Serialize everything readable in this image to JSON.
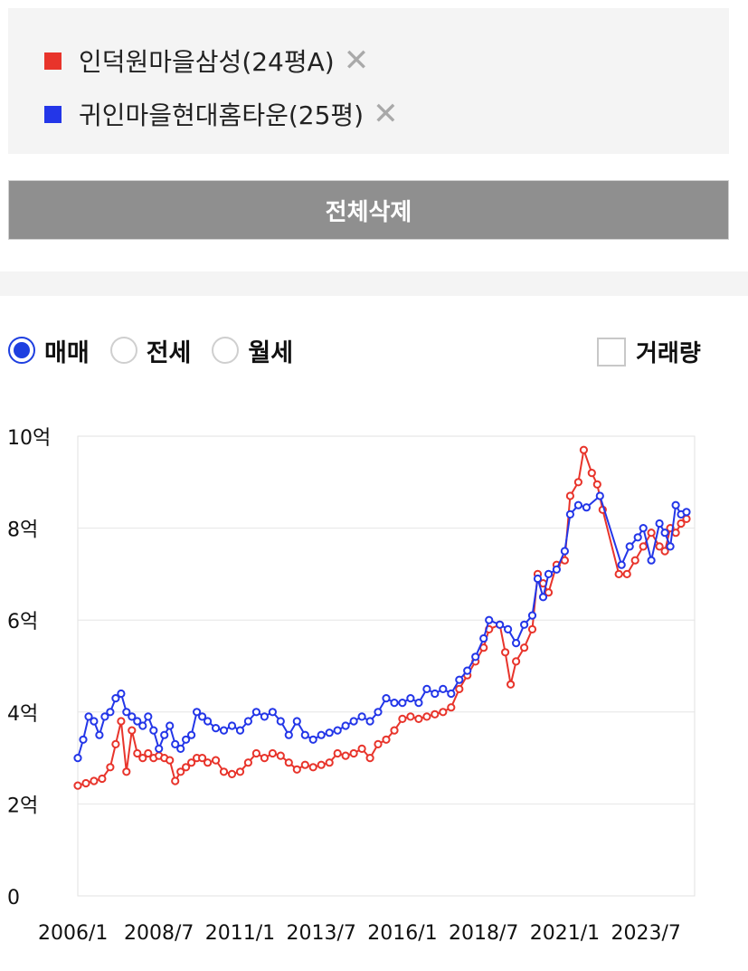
{
  "legend": {
    "items": [
      {
        "label": "인덕원마을삼성(24평A)",
        "color": "#e8342b",
        "remove_icon": "close-icon",
        "remove_glyph": "✕"
      },
      {
        "label": "귀인마을현대홈타운(25평)",
        "color": "#2336e8",
        "remove_icon": "close-icon",
        "remove_glyph": "✕"
      }
    ]
  },
  "actions": {
    "delete_all_label": "전체삭제"
  },
  "trade_type": {
    "options": [
      {
        "label": "매매",
        "selected": true
      },
      {
        "label": "전세",
        "selected": false
      },
      {
        "label": "월세",
        "selected": false
      }
    ]
  },
  "volume_toggle": {
    "label": "거래량",
    "checked": false
  },
  "chart_data": {
    "type": "line",
    "title": "",
    "xlabel": "",
    "ylabel": "",
    "x_ticks": [
      "2006/1",
      "2008/7",
      "2011/1",
      "2013/7",
      "2016/1",
      "2018/7",
      "2021/1",
      "2023/7"
    ],
    "y_ticks": [
      {
        "value": 0,
        "label": "0"
      },
      {
        "value": 2,
        "label": "2억"
      },
      {
        "value": 4,
        "label": "4억"
      },
      {
        "value": 6,
        "label": "6억"
      },
      {
        "value": 8,
        "label": "8억"
      },
      {
        "value": 10,
        "label": "10억"
      }
    ],
    "xlim": [
      "2006-01",
      "2025-01"
    ],
    "ylim": [
      0,
      10
    ],
    "y_unit": "억",
    "grid": "horizontal",
    "series": [
      {
        "name": "인덕원마을삼성(24평A)",
        "color": "#e8342b",
        "points": [
          [
            "2006-01",
            2.4
          ],
          [
            "2006-04",
            2.45
          ],
          [
            "2006-07",
            2.5
          ],
          [
            "2006-10",
            2.55
          ],
          [
            "2007-01",
            2.8
          ],
          [
            "2007-03",
            3.3
          ],
          [
            "2007-05",
            3.8
          ],
          [
            "2007-07",
            2.7
          ],
          [
            "2007-09",
            3.6
          ],
          [
            "2007-11",
            3.1
          ],
          [
            "2008-01",
            3.0
          ],
          [
            "2008-03",
            3.1
          ],
          [
            "2008-05",
            3.0
          ],
          [
            "2008-07",
            3.05
          ],
          [
            "2008-09",
            3.0
          ],
          [
            "2008-11",
            2.95
          ],
          [
            "2009-01",
            2.5
          ],
          [
            "2009-03",
            2.7
          ],
          [
            "2009-05",
            2.8
          ],
          [
            "2009-07",
            2.9
          ],
          [
            "2009-09",
            3.0
          ],
          [
            "2009-11",
            3.0
          ],
          [
            "2010-01",
            2.9
          ],
          [
            "2010-04",
            2.95
          ],
          [
            "2010-07",
            2.7
          ],
          [
            "2010-10",
            2.65
          ],
          [
            "2011-01",
            2.7
          ],
          [
            "2011-04",
            2.9
          ],
          [
            "2011-07",
            3.1
          ],
          [
            "2011-10",
            3.0
          ],
          [
            "2012-01",
            3.1
          ],
          [
            "2012-04",
            3.05
          ],
          [
            "2012-07",
            2.9
          ],
          [
            "2012-10",
            2.75
          ],
          [
            "2013-01",
            2.85
          ],
          [
            "2013-04",
            2.8
          ],
          [
            "2013-07",
            2.85
          ],
          [
            "2013-10",
            2.9
          ],
          [
            "2014-01",
            3.1
          ],
          [
            "2014-04",
            3.05
          ],
          [
            "2014-07",
            3.1
          ],
          [
            "2014-10",
            3.2
          ],
          [
            "2015-01",
            3.0
          ],
          [
            "2015-04",
            3.3
          ],
          [
            "2015-07",
            3.4
          ],
          [
            "2015-10",
            3.6
          ],
          [
            "2016-01",
            3.85
          ],
          [
            "2016-04",
            3.9
          ],
          [
            "2016-07",
            3.85
          ],
          [
            "2016-10",
            3.9
          ],
          [
            "2017-01",
            3.95
          ],
          [
            "2017-04",
            4.0
          ],
          [
            "2017-07",
            4.1
          ],
          [
            "2017-10",
            4.5
          ],
          [
            "2018-01",
            4.8
          ],
          [
            "2018-04",
            5.1
          ],
          [
            "2018-07",
            5.4
          ],
          [
            "2018-09",
            5.8
          ],
          [
            "2019-01",
            5.9
          ],
          [
            "2019-03",
            5.3
          ],
          [
            "2019-05",
            4.6
          ],
          [
            "2019-07",
            5.1
          ],
          [
            "2019-10",
            5.4
          ],
          [
            "2020-01",
            5.8
          ],
          [
            "2020-03",
            7.0
          ],
          [
            "2020-05",
            6.8
          ],
          [
            "2020-07",
            6.6
          ],
          [
            "2020-10",
            7.2
          ],
          [
            "2021-01",
            7.3
          ],
          [
            "2021-03",
            8.7
          ],
          [
            "2021-06",
            9.0
          ],
          [
            "2021-08",
            9.7
          ],
          [
            "2021-11",
            9.2
          ],
          [
            "2022-01",
            8.95
          ],
          [
            "2022-03",
            8.4
          ],
          [
            "2022-09",
            7.0
          ],
          [
            "2022-12",
            7.0
          ],
          [
            "2023-03",
            7.3
          ],
          [
            "2023-06",
            7.6
          ],
          [
            "2023-09",
            7.9
          ],
          [
            "2023-12",
            7.6
          ],
          [
            "2024-02",
            7.5
          ],
          [
            "2024-04",
            8.0
          ],
          [
            "2024-06",
            7.9
          ],
          [
            "2024-08",
            8.1
          ],
          [
            "2024-10",
            8.2
          ]
        ]
      },
      {
        "name": "귀인마을현대홈타운(25평)",
        "color": "#2336e8",
        "points": [
          [
            "2006-01",
            3.0
          ],
          [
            "2006-03",
            3.4
          ],
          [
            "2006-05",
            3.9
          ],
          [
            "2006-07",
            3.8
          ],
          [
            "2006-09",
            3.5
          ],
          [
            "2006-11",
            3.9
          ],
          [
            "2007-01",
            4.0
          ],
          [
            "2007-03",
            4.3
          ],
          [
            "2007-05",
            4.4
          ],
          [
            "2007-07",
            4.0
          ],
          [
            "2007-09",
            3.9
          ],
          [
            "2007-11",
            3.8
          ],
          [
            "2008-01",
            3.7
          ],
          [
            "2008-03",
            3.9
          ],
          [
            "2008-05",
            3.6
          ],
          [
            "2008-07",
            3.2
          ],
          [
            "2008-09",
            3.5
          ],
          [
            "2008-11",
            3.7
          ],
          [
            "2009-01",
            3.3
          ],
          [
            "2009-03",
            3.2
          ],
          [
            "2009-05",
            3.4
          ],
          [
            "2009-07",
            3.5
          ],
          [
            "2009-09",
            4.0
          ],
          [
            "2009-11",
            3.9
          ],
          [
            "2010-01",
            3.8
          ],
          [
            "2010-04",
            3.65
          ],
          [
            "2010-07",
            3.6
          ],
          [
            "2010-10",
            3.7
          ],
          [
            "2011-01",
            3.6
          ],
          [
            "2011-04",
            3.8
          ],
          [
            "2011-07",
            4.0
          ],
          [
            "2011-10",
            3.9
          ],
          [
            "2012-01",
            4.0
          ],
          [
            "2012-04",
            3.8
          ],
          [
            "2012-07",
            3.5
          ],
          [
            "2012-10",
            3.8
          ],
          [
            "2013-01",
            3.5
          ],
          [
            "2013-04",
            3.4
          ],
          [
            "2013-07",
            3.5
          ],
          [
            "2013-10",
            3.55
          ],
          [
            "2014-01",
            3.6
          ],
          [
            "2014-04",
            3.7
          ],
          [
            "2014-07",
            3.8
          ],
          [
            "2014-10",
            3.9
          ],
          [
            "2015-01",
            3.8
          ],
          [
            "2015-04",
            4.0
          ],
          [
            "2015-07",
            4.3
          ],
          [
            "2015-10",
            4.2
          ],
          [
            "2016-01",
            4.2
          ],
          [
            "2016-04",
            4.3
          ],
          [
            "2016-07",
            4.2
          ],
          [
            "2016-10",
            4.5
          ],
          [
            "2017-01",
            4.4
          ],
          [
            "2017-04",
            4.5
          ],
          [
            "2017-07",
            4.4
          ],
          [
            "2017-10",
            4.7
          ],
          [
            "2018-01",
            4.9
          ],
          [
            "2018-04",
            5.2
          ],
          [
            "2018-07",
            5.6
          ],
          [
            "2018-09",
            6.0
          ],
          [
            "2019-01",
            5.9
          ],
          [
            "2019-04",
            5.8
          ],
          [
            "2019-07",
            5.5
          ],
          [
            "2019-10",
            5.9
          ],
          [
            "2020-01",
            6.1
          ],
          [
            "2020-03",
            6.9
          ],
          [
            "2020-05",
            6.5
          ],
          [
            "2020-07",
            7.0
          ],
          [
            "2020-10",
            7.1
          ],
          [
            "2021-01",
            7.5
          ],
          [
            "2021-03",
            8.3
          ],
          [
            "2021-06",
            8.5
          ],
          [
            "2021-09",
            8.45
          ],
          [
            "2022-02",
            8.7
          ],
          [
            "2022-10",
            7.2
          ],
          [
            "2023-01",
            7.6
          ],
          [
            "2023-04",
            7.8
          ],
          [
            "2023-06",
            8.0
          ],
          [
            "2023-09",
            7.3
          ],
          [
            "2023-12",
            8.1
          ],
          [
            "2024-02",
            7.9
          ],
          [
            "2024-04",
            7.6
          ],
          [
            "2024-06",
            8.5
          ],
          [
            "2024-08",
            8.3
          ],
          [
            "2024-10",
            8.35
          ]
        ]
      }
    ]
  }
}
